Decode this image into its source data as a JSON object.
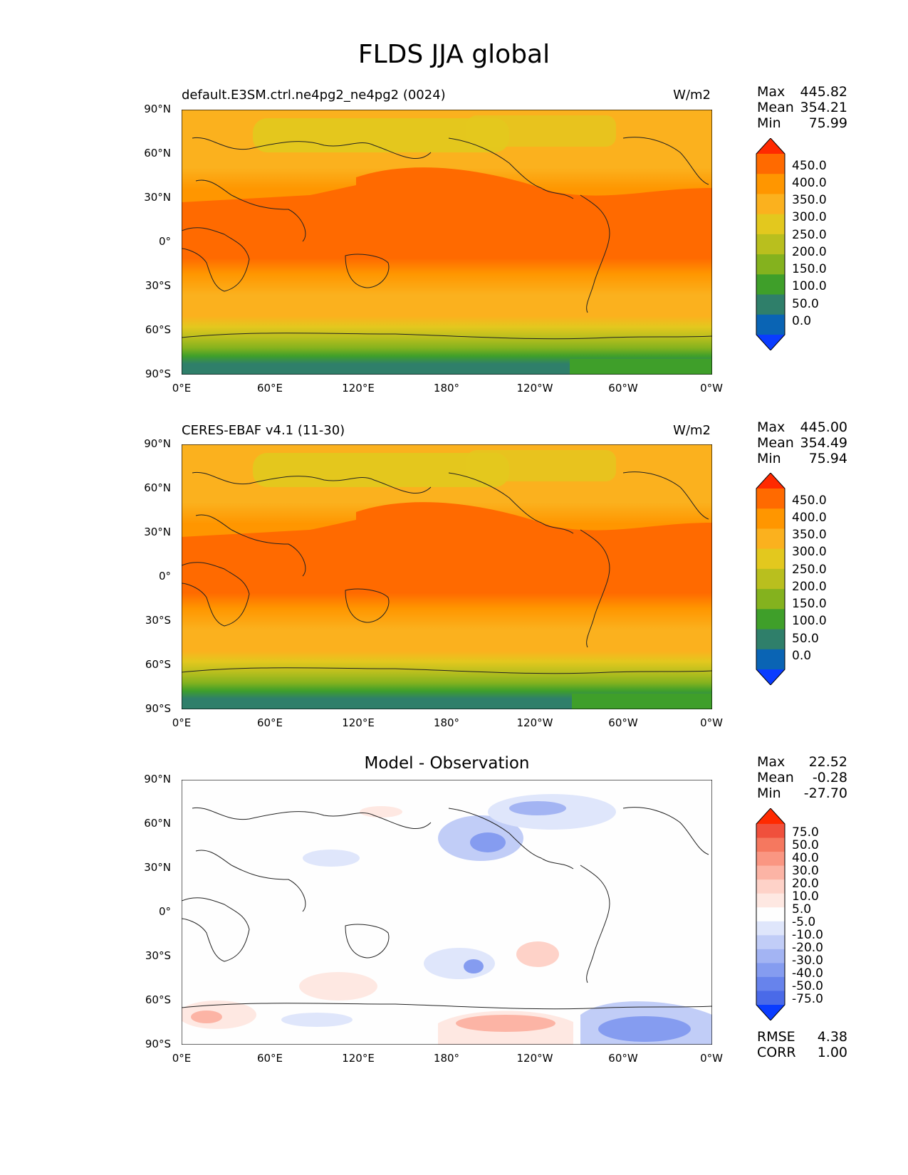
{
  "title": "FLDS JJA global",
  "panels": [
    {
      "left_title": "default.E3SM.ctrl.ne4pg2_ne4pg2 (0024)",
      "center_title": "",
      "right_title": "W/m2",
      "stats": [
        {
          "label": "Max",
          "value": "445.82"
        },
        {
          "label": "Mean",
          "value": "354.21"
        },
        {
          "label": "Min",
          "value": "75.99"
        }
      ],
      "colorbar_labels": [
        "450.0",
        "400.0",
        "350.0",
        "300.0",
        "250.0",
        "200.0",
        "150.0",
        "100.0",
        "50.0",
        "0.0"
      ],
      "footer_stats": []
    },
    {
      "left_title": "CERES-EBAF v4.1 (11-30)",
      "center_title": "",
      "right_title": "W/m2",
      "stats": [
        {
          "label": "Max",
          "value": "445.00"
        },
        {
          "label": "Mean",
          "value": "354.49"
        },
        {
          "label": "Min",
          "value": "75.94"
        }
      ],
      "colorbar_labels": [
        "450.0",
        "400.0",
        "350.0",
        "300.0",
        "250.0",
        "200.0",
        "150.0",
        "100.0",
        "50.0",
        "0.0"
      ],
      "footer_stats": []
    },
    {
      "left_title": "",
      "center_title": "Model - Observation",
      "right_title": "",
      "stats": [
        {
          "label": "Max",
          "value": "22.52"
        },
        {
          "label": "Mean",
          "value": "-0.28"
        },
        {
          "label": "Min",
          "value": "-27.70"
        }
      ],
      "colorbar_labels": [
        "75.0",
        "50.0",
        "40.0",
        "30.0",
        "20.0",
        "10.0",
        "5.0",
        "-5.0",
        "-10.0",
        "-20.0",
        "-30.0",
        "-40.0",
        "-50.0",
        "-75.0"
      ],
      "footer_stats": [
        {
          "label": "RMSE",
          "value": "4.38"
        },
        {
          "label": "CORR",
          "value": "1.00"
        }
      ]
    }
  ],
  "lat_ticks": [
    "90°N",
    "60°N",
    "30°N",
    "0°",
    "30°S",
    "60°S",
    "90°S"
  ],
  "lon_ticks": [
    "0°E",
    "60°E",
    "120°E",
    "180°",
    "120°W",
    "60°W",
    "0°W"
  ],
  "colors": {
    "flds_colorbar": [
      "#ff2a00",
      "#ff6a00",
      "#ff9600",
      "#fbb11e",
      "#e3c81e",
      "#b9bf1e",
      "#84b21e",
      "#3f9f2a",
      "#2f7f6a",
      "#0a64b4",
      "#0a3cff"
    ],
    "diff_colorbar": [
      "#ff2a00",
      "#f0503c",
      "#f5785f",
      "#fa9682",
      "#fcb4a5",
      "#fed2c8",
      "#fee8e2",
      "#fefefe",
      "#dfe6fb",
      "#c1cdf7",
      "#a3b4f3",
      "#859cf0",
      "#6783ec",
      "#4a6ae8",
      "#0a3cff"
    ]
  }
}
